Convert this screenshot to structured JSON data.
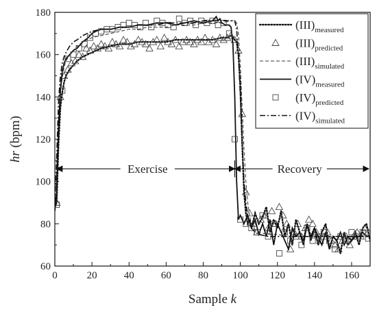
{
  "chart_data": {
    "type": "line",
    "title": "",
    "xlabel_prefix": "Sample ",
    "xlabel_var": "k",
    "ylabel_var": "hr",
    "ylabel_suffix": " (bpm)",
    "xlim": [
      0,
      170
    ],
    "ylim": [
      60,
      180
    ],
    "xticks": [
      0,
      20,
      40,
      60,
      80,
      100,
      120,
      140,
      160
    ],
    "yticks": [
      60,
      80,
      100,
      120,
      140,
      160,
      180
    ],
    "grid": false,
    "legend_position": "top-right",
    "annotations": [
      {
        "text": "Exercise",
        "x": 50,
        "y": 106,
        "arrow_from": 1,
        "arrow_to": 97
      },
      {
        "text": "Recovery",
        "x": 132,
        "y": 106,
        "arrow_from": 97,
        "arrow_to": 170
      }
    ],
    "series": [
      {
        "name": "(III)",
        "name_sub": "measured",
        "style": "dotted-line",
        "x": [
          0,
          1,
          2,
          3,
          4,
          5,
          6,
          8,
          10,
          12,
          15,
          20,
          25,
          30,
          35,
          40,
          45,
          50,
          55,
          60,
          65,
          70,
          75,
          80,
          85,
          90,
          93,
          95,
          96,
          97,
          98,
          99,
          100,
          101,
          102,
          103,
          104,
          105,
          106,
          108,
          110,
          112,
          114,
          116,
          118,
          120,
          122,
          124,
          126,
          128,
          130,
          132,
          134,
          136,
          138,
          140,
          142,
          144,
          146,
          148,
          150,
          152,
          154,
          156,
          158,
          160,
          162,
          164,
          166,
          168,
          170
        ],
        "y": [
          88,
          90,
          118,
          135,
          142,
          147,
          150,
          153,
          155,
          157,
          159,
          161,
          163,
          164,
          165,
          165,
          166,
          166,
          166,
          166,
          167,
          167,
          167,
          167,
          167,
          168,
          168,
          169,
          168,
          167,
          166,
          160,
          145,
          118,
          95,
          85,
          80,
          82,
          78,
          85,
          80,
          83,
          88,
          76,
          82,
          78,
          86,
          74,
          80,
          70,
          82,
          76,
          72,
          80,
          74,
          78,
          70,
          76,
          80,
          68,
          74,
          72,
          66,
          76,
          70,
          72,
          76,
          70,
          78,
          80,
          72
        ]
      },
      {
        "name": "(III)",
        "name_sub": "predicted",
        "style": "triangle-markers",
        "x": [
          1,
          3,
          5,
          7,
          9,
          11,
          13,
          15,
          17,
          19,
          21,
          23,
          25,
          27,
          29,
          31,
          33,
          35,
          37,
          39,
          41,
          43,
          45,
          47,
          49,
          51,
          53,
          55,
          57,
          59,
          61,
          63,
          65,
          67,
          69,
          71,
          73,
          75,
          77,
          79,
          81,
          83,
          85,
          87,
          89,
          91,
          93,
          95,
          97,
          99,
          101,
          103,
          105,
          107,
          109,
          111,
          113,
          115,
          117,
          119,
          121,
          123,
          125,
          127,
          129,
          131,
          133,
          135,
          137,
          139,
          141,
          143,
          145,
          147,
          149,
          151,
          153,
          155,
          157,
          159,
          161,
          163,
          165,
          167,
          169
        ],
        "y": [
          90,
          140,
          150,
          153,
          156,
          157,
          160,
          159,
          163,
          162,
          164,
          163,
          165,
          164,
          163,
          166,
          165,
          164,
          167,
          166,
          164,
          165,
          167,
          166,
          165,
          163,
          166,
          167,
          164,
          168,
          166,
          165,
          167,
          164,
          166,
          167,
          166,
          165,
          167,
          166,
          168,
          166,
          167,
          165,
          168,
          167,
          168,
          169,
          167,
          162,
          132,
          95,
          85,
          80,
          76,
          82,
          84,
          78,
          86,
          80,
          88,
          84,
          80,
          68,
          76,
          80,
          74,
          78,
          82,
          80,
          76,
          72,
          74,
          76,
          72,
          70,
          68,
          72,
          74,
          70,
          74,
          76,
          74,
          78,
          76
        ]
      },
      {
        "name": "(III)",
        "name_sub": "simulated",
        "style": "dashed-line",
        "x": [
          0,
          1,
          2,
          3,
          4,
          5,
          6,
          8,
          10,
          12,
          15,
          20,
          25,
          30,
          35,
          40,
          45,
          50,
          55,
          60,
          65,
          70,
          75,
          80,
          85,
          90,
          95,
          97,
          98,
          99,
          100,
          101,
          102,
          103,
          104,
          105,
          106,
          108,
          110,
          115,
          120,
          125,
          130,
          135,
          140,
          145,
          150,
          155,
          160,
          165,
          170
        ],
        "y": [
          90,
          105,
          130,
          142,
          149,
          154,
          157,
          160,
          162,
          164,
          166,
          168,
          169,
          170,
          171,
          172,
          172,
          173,
          173,
          173,
          174,
          174,
          174,
          175,
          175,
          175,
          176,
          176,
          175,
          170,
          155,
          135,
          115,
          100,
          90,
          84,
          80,
          77,
          76,
          75,
          75,
          74,
          74,
          74,
          74,
          74,
          74,
          74,
          74,
          74,
          74
        ]
      },
      {
        "name": "(IV)",
        "name_sub": "measured",
        "style": "solid-line",
        "x": [
          0,
          1,
          2,
          3,
          4,
          5,
          6,
          8,
          10,
          12,
          15,
          18,
          20,
          22,
          25,
          30,
          35,
          40,
          45,
          50,
          55,
          60,
          65,
          70,
          75,
          80,
          85,
          87,
          88,
          89,
          90,
          92,
          94,
          95,
          96,
          97,
          98,
          99,
          100,
          102,
          104,
          106,
          108,
          110,
          112,
          114,
          116,
          118,
          120,
          122,
          124,
          126,
          128,
          130,
          132,
          134,
          136,
          138,
          140,
          142,
          144,
          146,
          148,
          150,
          152,
          154,
          156,
          158,
          160,
          162,
          164,
          166,
          168,
          170
        ],
        "y": [
          86,
          95,
          125,
          143,
          152,
          156,
          158,
          160,
          162,
          163,
          166,
          168,
          170,
          171,
          172,
          172,
          173,
          173,
          174,
          174,
          175,
          175,
          174,
          175,
          176,
          175,
          176,
          178,
          176,
          177,
          175,
          174,
          174,
          173,
          165,
          140,
          100,
          82,
          84,
          80,
          84,
          78,
          82,
          75,
          80,
          74,
          82,
          70,
          80,
          76,
          72,
          68,
          78,
          74,
          76,
          70,
          80,
          72,
          78,
          74,
          70,
          76,
          68,
          74,
          72,
          76,
          70,
          74,
          72,
          74,
          74,
          76,
          74,
          74
        ]
      },
      {
        "name": "(IV)",
        "name_sub": "predicted",
        "style": "square-markers",
        "x": [
          1,
          4,
          7,
          10,
          13,
          16,
          19,
          22,
          25,
          28,
          31,
          34,
          37,
          40,
          43,
          46,
          49,
          52,
          55,
          58,
          61,
          64,
          67,
          70,
          73,
          76,
          79,
          82,
          85,
          88,
          91,
          94,
          97,
          100,
          103,
          106,
          109,
          112,
          115,
          118,
          121,
          124,
          127,
          130,
          133,
          136,
          139,
          142,
          145,
          148,
          151,
          154,
          157,
          160,
          163,
          166,
          169
        ],
        "y": [
          89,
          143,
          158,
          160,
          163,
          165,
          168,
          170,
          171,
          172,
          172,
          173,
          174,
          175,
          174,
          173,
          175,
          173,
          176,
          175,
          174,
          173,
          177,
          175,
          176,
          174,
          176,
          175,
          176,
          174,
          175,
          170,
          120,
          82,
          80,
          78,
          76,
          84,
          74,
          80,
          66,
          76,
          72,
          74,
          70,
          78,
          72,
          74,
          76,
          72,
          68,
          74,
          72,
          76,
          74,
          76,
          73
        ]
      },
      {
        "name": "(IV)",
        "name_sub": "simulated",
        "style": "dashdot-line",
        "x": [
          0,
          1,
          2,
          3,
          4,
          5,
          6,
          8,
          10,
          12,
          15,
          20,
          25,
          30,
          35,
          40,
          45,
          50,
          55,
          60,
          65,
          70,
          75,
          80,
          85,
          90,
          95,
          97,
          98,
          99,
          100,
          101,
          102,
          103,
          104,
          105,
          106,
          108,
          110,
          115,
          120,
          125,
          130,
          135,
          140,
          145,
          150,
          155,
          160,
          165,
          170
        ],
        "y": [
          90,
          112,
          138,
          150,
          156,
          159,
          161,
          164,
          166,
          167,
          169,
          171,
          172,
          172,
          173,
          173,
          174,
          174,
          174,
          175,
          175,
          175,
          175,
          176,
          176,
          176,
          176,
          176,
          172,
          160,
          140,
          118,
          100,
          90,
          84,
          80,
          78,
          76,
          75,
          74,
          74,
          74,
          74,
          74,
          74,
          74,
          74,
          74,
          74,
          74,
          74
        ]
      }
    ]
  }
}
